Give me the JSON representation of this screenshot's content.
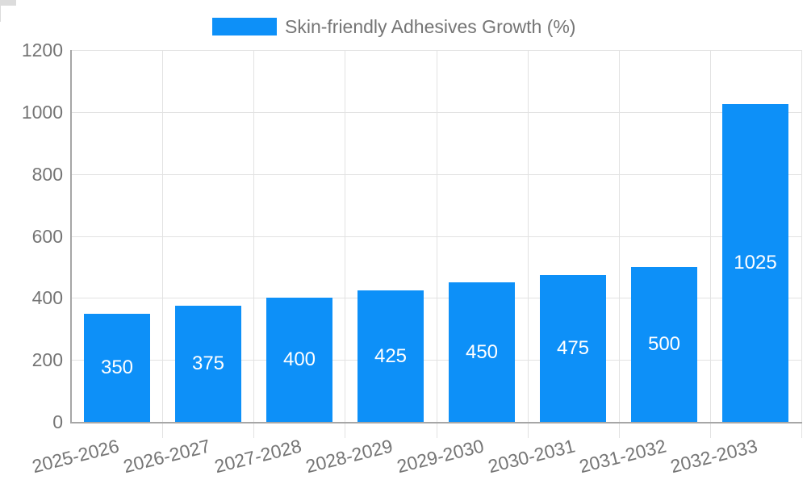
{
  "chart_data": {
    "type": "bar",
    "title": "Skin-friendly Adhesives Growth (%)",
    "categories": [
      "2025-2026",
      "2026-2027",
      "2027-2028",
      "2028-2029",
      "2029-2030",
      "2030-2031",
      "2031-2032",
      "2032-2033"
    ],
    "values": [
      350,
      375,
      400,
      425,
      450,
      475,
      500,
      1025
    ],
    "value_labels": [
      "350",
      "375",
      "400",
      "425",
      "450",
      "475",
      "500",
      "1025"
    ],
    "xlabel": "",
    "ylabel": "",
    "ylim": [
      0,
      1200
    ],
    "yticks": [
      0,
      200,
      400,
      600,
      800,
      1000,
      1200
    ],
    "ytick_labels": [
      "0",
      "200",
      "400",
      "600",
      "800",
      "1000",
      "1200"
    ],
    "grid": true,
    "legend_position": "top",
    "x_label_rotation_deg": -14,
    "colors": {
      "bar": "#0d90f8",
      "bar_value_text": "#ffffff",
      "axis_text": "#757575",
      "grid_line": "#e2e2e2",
      "tick_line": "#dcdcdc",
      "axis_line": "#a6a6a6",
      "background": "#ffffff"
    }
  }
}
